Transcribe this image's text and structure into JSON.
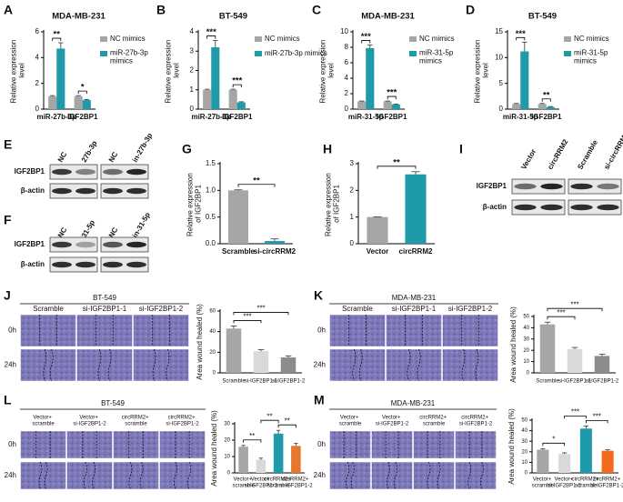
{
  "chart_data": [
    {
      "type": "bar",
      "label": "A",
      "title": "MDA-MB-231",
      "ylabel": "Relative expression level",
      "categories": [
        "miR-27b-3p",
        "IGF2BP1"
      ],
      "series": [
        {
          "name": "NC mimics",
          "color": "#a6a6a6",
          "values": [
            1,
            1
          ],
          "errors": [
            0.05,
            0.05
          ]
        },
        {
          "name": "miR-27b-3p mimics",
          "color": "#1f9aa8",
          "values": [
            4.7,
            0.7
          ],
          "errors": [
            0.45,
            0.05
          ]
        }
      ],
      "ylim": [
        0,
        6
      ],
      "yticks": [
        0,
        2,
        4,
        6
      ],
      "annotations": [
        "**",
        "*"
      ]
    },
    {
      "type": "bar",
      "label": "B",
      "title": "BT-549",
      "ylabel": "Relative expression level",
      "categories": [
        "miR-27b-3p",
        "IGF2BP1"
      ],
      "series": [
        {
          "name": "NC mimics",
          "color": "#a6a6a6",
          "values": [
            1,
            1
          ],
          "errors": [
            0.03,
            0.03
          ]
        },
        {
          "name": "miR-27b-3p mimics",
          "color": "#1f9aa8",
          "values": [
            3.2,
            0.35
          ],
          "errors": [
            0.35,
            0.03
          ]
        }
      ],
      "ylim": [
        0,
        4
      ],
      "yticks": [
        0,
        1,
        2,
        3,
        4
      ],
      "annotations": [
        "***",
        "***"
      ]
    },
    {
      "type": "bar",
      "label": "C",
      "title": "MDA-MB-231",
      "ylabel": "Relative expression level",
      "categories": [
        "miR-31-5p",
        "IGF2BP1"
      ],
      "series": [
        {
          "name": "NC mimics",
          "color": "#a6a6a6",
          "values": [
            1,
            1
          ],
          "errors": [
            0.05,
            0.05
          ]
        },
        {
          "name": "miR-31-5p mimics",
          "color": "#1f9aa8",
          "values": [
            7.9,
            0.6
          ],
          "errors": [
            0.4,
            0.05
          ]
        }
      ],
      "ylim": [
        0,
        10
      ],
      "yticks": [
        0,
        2,
        4,
        6,
        8,
        10
      ],
      "annotations": [
        "***",
        "***"
      ]
    },
    {
      "type": "bar",
      "label": "D",
      "title": "BT-549",
      "ylabel": "Relative expression level",
      "categories": [
        "miR-31-5p",
        "IGF2BP1"
      ],
      "series": [
        {
          "name": "NC mimics",
          "color": "#a6a6a6",
          "values": [
            1,
            1
          ],
          "errors": [
            0.1,
            0.1
          ]
        },
        {
          "name": "miR-31-5p mimics",
          "color": "#1f9aa8",
          "values": [
            11.2,
            0.4
          ],
          "errors": [
            1.8,
            0.1
          ]
        }
      ],
      "ylim": [
        0,
        15
      ],
      "yticks": [
        0,
        5,
        10,
        15
      ],
      "annotations": [
        "***",
        "**"
      ]
    },
    {
      "type": "bar",
      "label": "G",
      "ylabel": "Relative expression of IGF2BP1",
      "categories": [
        "Scramble",
        "si-circRRM2"
      ],
      "values": [
        1,
        0.05
      ],
      "errors": [
        0.01,
        0.04
      ],
      "colors": [
        "#a6a6a6",
        "#1f9aa8"
      ],
      "ylim": [
        0,
        1.5
      ],
      "yticks": [
        {
          "value": 0,
          "label": "0.0"
        },
        {
          "value": 0.5,
          "label": "0.5"
        },
        {
          "value": 1,
          "label": "1.0"
        },
        {
          "value": 1.5,
          "label": "1.5"
        }
      ],
      "annotations": [
        "**"
      ]
    },
    {
      "type": "bar",
      "label": "H",
      "ylabel": "Relative expression of IGF2BP1",
      "categories": [
        "Vector",
        "circRRM2"
      ],
      "values": [
        1,
        2.6
      ],
      "errors": [
        0.01,
        0.1
      ],
      "colors": [
        "#a6a6a6",
        "#1f9aa8"
      ],
      "ylim": [
        0,
        3
      ],
      "yticks": [
        0,
        1,
        2,
        3
      ],
      "annotations": [
        "**"
      ]
    },
    {
      "type": "bar",
      "ylabel": "Area wound healed (%)",
      "categories": [
        "Scramble",
        "si-IGF2BP1-1",
        "si-IGF2BP1-2"
      ],
      "values": [
        43,
        21,
        15
      ],
      "errors": [
        2.5,
        1.5,
        1.5
      ],
      "colors": [
        "#a6a6a6",
        "#d9d9d9",
        "#8c8c8c"
      ],
      "ylim": [
        0,
        60
      ],
      "yticks": [
        0,
        20,
        40,
        60
      ],
      "annotations": [
        "***",
        "***"
      ]
    },
    {
      "type": "bar",
      "ylabel": "Area wound healed (%)",
      "categories": [
        "Scramble",
        "si-IGF2BP1-1",
        "si-IGF2BP1-2"
      ],
      "values": [
        43,
        21,
        15
      ],
      "errors": [
        2,
        1.5,
        1.5
      ],
      "colors": [
        "#a6a6a6",
        "#d9d9d9",
        "#8c8c8c"
      ],
      "ylim": [
        0,
        50
      ],
      "yticks": [
        0,
        10,
        20,
        30,
        40,
        50
      ],
      "annotations": [
        "***",
        "***"
      ]
    },
    {
      "type": "bar",
      "ylabel": "Area wound healed (%)",
      "categories": [
        "Vector+ scramble",
        "Vector+ si-IGF2BP1-2",
        "circRRM2+ scramble",
        "circRRM2+ si-IGF2BP1-2"
      ],
      "values": [
        16,
        8,
        24,
        16.5
      ],
      "errors": [
        0.8,
        1,
        2,
        1.5
      ],
      "colors": [
        "#a6a6a6",
        "#d9d9d9",
        "#1f9aa8",
        "#e8772e"
      ],
      "ylim": [
        0,
        30
      ],
      "yticks": [
        0,
        10,
        20,
        30
      ],
      "annotations": [
        "**",
        "**",
        "**"
      ]
    },
    {
      "type": "bar",
      "ylabel": "Area wound healed (%)",
      "categories": [
        "Vector+ scramble",
        "Vector+ si-IGF2BP1-2",
        "circRRM2+ scramble",
        "circRRM2+ si-IGF2BP1-2"
      ],
      "values": [
        22,
        18,
        42,
        21
      ],
      "errors": [
        1,
        1,
        2.5,
        1
      ],
      "colors": [
        "#a6a6a6",
        "#d9d9d9",
        "#1f9aa8",
        "#f26b1d"
      ],
      "ylim": [
        0,
        50
      ],
      "yticks": [
        0,
        10,
        20,
        30,
        40,
        50
      ],
      "annotations": [
        "*",
        "***",
        "***"
      ]
    }
  ],
  "blots": [
    {
      "label": "E",
      "columns": [
        "NC",
        "27b-3p",
        "NC",
        "in-27b-3p"
      ],
      "rows": [
        "IGF2BP1",
        "β-actin"
      ]
    },
    {
      "label": "F",
      "columns": [
        "NC",
        "31-5p",
        "NC",
        "in-31-5p"
      ],
      "rows": [
        "IGF2BP1",
        "β-actin"
      ]
    },
    {
      "label": "I",
      "columns": [
        "Vector",
        "circRRM2",
        "Scramble",
        "si-circRRM2"
      ],
      "rows": [
        "IGF2BP1",
        "β-actin"
      ]
    }
  ],
  "wounds": [
    {
      "label": "J",
      "title": "BT-549",
      "columns": [
        "Scramble",
        "si-IGF2BP1-1",
        "si-IGF2BP1-2"
      ],
      "rows": [
        "0h",
        "24h"
      ]
    },
    {
      "label": "K",
      "title": "MDA-MB-231",
      "columns": [
        "Scramble",
        "si-IGF2BP1-1",
        "si-IGF2BP1-2"
      ],
      "rows": [
        "0h",
        "24h"
      ]
    },
    {
      "label": "L",
      "title": "BT-549",
      "columns": [
        "Vector+ scramble",
        "Vector+ si-IGF2BP1-2",
        "circRRM2+ scramble",
        "circRRM2+ si-IGF2BP1-2"
      ],
      "rows": [
        "0h",
        "24h"
      ]
    },
    {
      "label": "M",
      "title": "MDA-MB-231",
      "columns": [
        "Vector+ scramble",
        "Vector+ si-IGF2BP1-2",
        "circRRM2+ scramble",
        "circRRM2+ si-IGF2BP1-2"
      ],
      "rows": [
        "0h",
        "24h"
      ]
    }
  ]
}
